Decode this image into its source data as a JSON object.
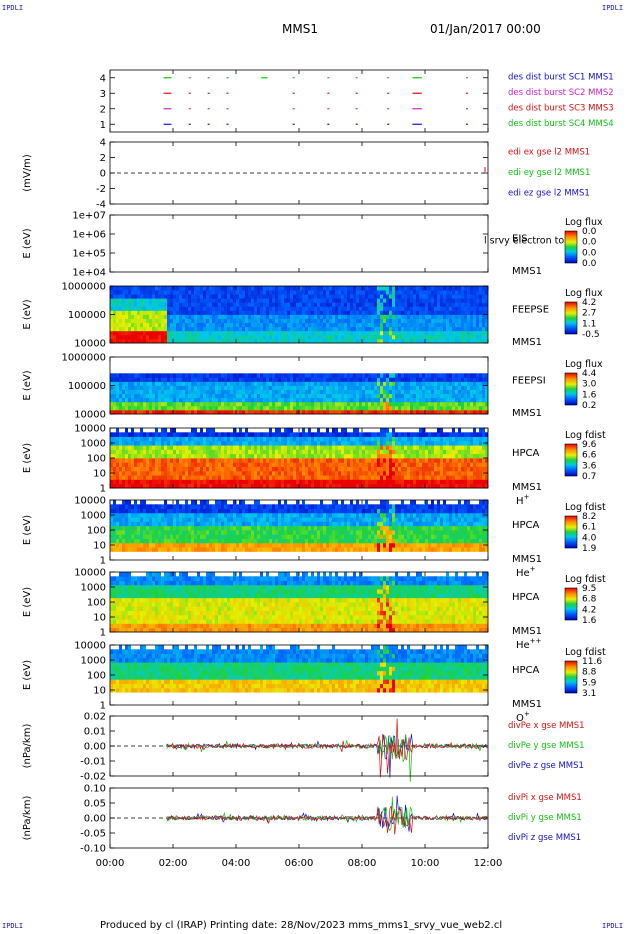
{
  "page": {
    "corner_label": "IPDLI",
    "title": "MMS1",
    "date": "01/Jan/2017 00:00",
    "footer": "Produced by cl (IRAP)   Printing date: 28/Nov/2023   mms_mms1_srvy_vue_web2.cl"
  },
  "colors": {
    "blue": "#1010d0",
    "magenta": "#d020d0",
    "red": "#d81010",
    "green": "#10c010"
  },
  "chart_data": {
    "type": "multi-panel",
    "x_ticks": [
      "00:00",
      "02:00",
      "04:00",
      "06:00",
      "08:00",
      "10:00",
      "12:00"
    ],
    "x_range_hours": [
      0,
      12
    ],
    "panels": [
      {
        "id": "burst",
        "type": "scatter",
        "yticks": [
          "4",
          "3",
          "2",
          "1"
        ],
        "legend": [
          {
            "text": "des dist burst SC1 MMS1",
            "color": "#1010d0"
          },
          {
            "text": "des dist burst SC2 MMS2",
            "color": "#d020d0"
          },
          {
            "text": "des dist burst SC3 MMS3",
            "color": "#d81010"
          },
          {
            "text": "des dist burst SC4 MMS4",
            "color": "#10c010"
          }
        ]
      },
      {
        "id": "edi",
        "type": "line",
        "ylabel": "(mV/m)",
        "yticks": [
          "4",
          "2",
          "0",
          "-2",
          "-4"
        ],
        "legend": [
          {
            "text": "edi ex gse l2 MMS1",
            "color": "#d81010"
          },
          {
            "text": "edi ey gse l2 MMS1",
            "color": "#10c010"
          },
          {
            "text": "edi ez gse l2 MMS1",
            "color": "#1010d0"
          }
        ]
      },
      {
        "id": "eis",
        "type": "heatmap",
        "ylabel": "E (eV)",
        "yticks": [
          "1e+07",
          "1e+06",
          "1e+05",
          "1e+04"
        ],
        "instrument": "EIS",
        "sc": "MMS1",
        "overlay_text": "l srvy electron to",
        "colorbar_title": "Log flux",
        "colorbar_ticks": [
          "0.0",
          "0.0",
          "0.0",
          "0.0"
        ]
      },
      {
        "id": "feepse",
        "type": "heatmap",
        "ylabel": "E (eV)",
        "yticks": [
          "1000000",
          "100000",
          "10000"
        ],
        "instrument": "FEEPSE",
        "sc": "MMS1",
        "colorbar_title": "Log flux",
        "colorbar_ticks": [
          "4.2",
          "2.7",
          "1.1",
          "-0.5"
        ]
      },
      {
        "id": "feepsi",
        "type": "heatmap",
        "ylabel": "E (eV)",
        "yticks": [
          "1000000",
          "100000",
          "10000"
        ],
        "instrument": "FEEPSI",
        "sc": "MMS1",
        "colorbar_title": "Log flux",
        "colorbar_ticks": [
          "4.4",
          "3.0",
          "1.6",
          "0.2"
        ]
      },
      {
        "id": "hpca_h",
        "type": "heatmap",
        "ylabel": "E (eV)",
        "yticks": [
          "10000",
          "1000",
          "100",
          "10",
          "1"
        ],
        "instrument": "HPCA",
        "sc": "MMS1",
        "species": "H",
        "species_sup": "+",
        "colorbar_title": "Log fdist",
        "colorbar_ticks": [
          "9.6",
          "6.6",
          "3.6",
          "0.7"
        ]
      },
      {
        "id": "hpca_he",
        "type": "heatmap",
        "ylabel": "E (eV)",
        "yticks": [
          "10000",
          "1000",
          "100",
          "10",
          "1"
        ],
        "instrument": "HPCA",
        "sc": "MMS1",
        "species": "He",
        "species_sup": "+",
        "colorbar_title": "Log fdist",
        "colorbar_ticks": [
          "8.2",
          "6.1",
          "4.0",
          "1.9"
        ]
      },
      {
        "id": "hpca_hepp",
        "type": "heatmap",
        "ylabel": "E (eV)",
        "yticks": [
          "10000",
          "1000",
          "100",
          "10",
          "1"
        ],
        "instrument": "HPCA",
        "sc": "MMS1",
        "species": "He",
        "species_sup": "++",
        "colorbar_title": "Log fdist",
        "colorbar_ticks": [
          "9.5",
          "6.8",
          "4.2",
          "1.6"
        ]
      },
      {
        "id": "hpca_o",
        "type": "heatmap",
        "ylabel": "E (eV)",
        "yticks": [
          "10000",
          "1000",
          "100",
          "10",
          "1"
        ],
        "instrument": "HPCA",
        "sc": "MMS1",
        "species": "O",
        "species_sup": "+",
        "colorbar_title": "Log fdist",
        "colorbar_ticks": [
          "11.6",
          "8.8",
          "5.9",
          "3.1"
        ]
      },
      {
        "id": "divpe",
        "type": "line",
        "ylabel": "(nPa/km)",
        "yticks": [
          "0.02",
          "0.01",
          "0.00",
          "-0.01",
          "-0.02"
        ],
        "legend": [
          {
            "text": "divPe x gse MMS1",
            "color": "#d81010"
          },
          {
            "text": "divPe y gse MMS1",
            "color": "#10c010"
          },
          {
            "text": "divPe z gse MMS1",
            "color": "#1010d0"
          }
        ]
      },
      {
        "id": "divpi",
        "type": "line",
        "ylabel": "(nPa/km)",
        "yticks": [
          "0.10",
          "0.05",
          "0.00",
          "-0.05",
          "-0.10"
        ],
        "legend": [
          {
            "text": "divPi x gse MMS1",
            "color": "#d81010"
          },
          {
            "text": "divPi y gse MMS1",
            "color": "#10c010"
          },
          {
            "text": "divPi z gse MMS1",
            "color": "#1010d0"
          }
        ]
      }
    ]
  }
}
